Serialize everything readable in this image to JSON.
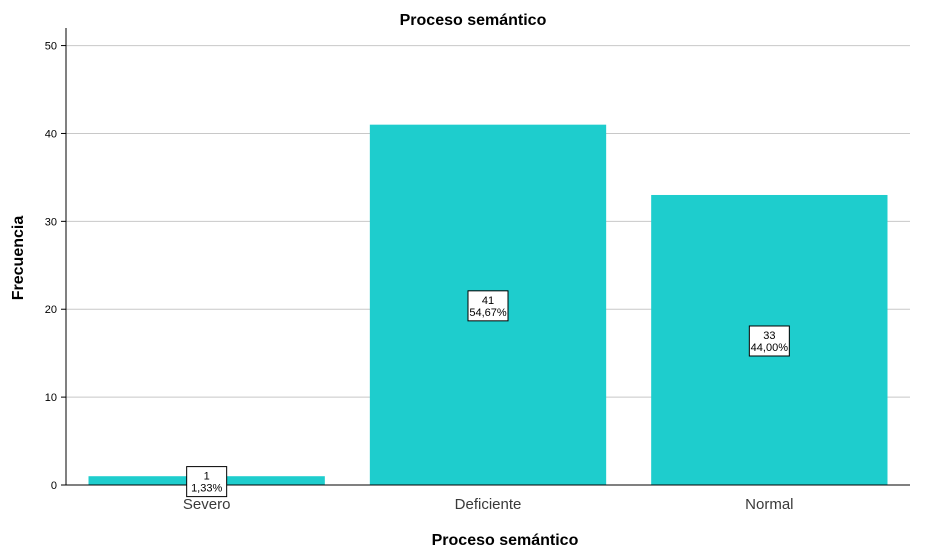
{
  "chart_data": {
    "type": "bar",
    "title": "Proceso semántico",
    "xlabel": "Proceso semántico",
    "ylabel": "Frecuencia",
    "categories": [
      "Severo",
      "Deficiente",
      "Normal"
    ],
    "values": [
      1,
      41,
      33
    ],
    "data_labels": [
      {
        "count": "1",
        "percent": "1,33%"
      },
      {
        "count": "41",
        "percent": "54,67%"
      },
      {
        "count": "33",
        "percent": "44,00%"
      }
    ],
    "ylim": [
      0,
      52
    ],
    "yticks": [
      0,
      10,
      20,
      30,
      40,
      50
    ],
    "grid": true,
    "bar_color": "#1ecdcd",
    "grid_color": "#c8c8c8",
    "label_box_border": "#000000"
  }
}
